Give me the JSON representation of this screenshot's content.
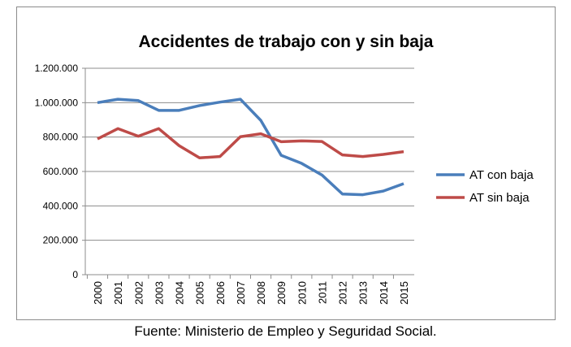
{
  "chart_data": {
    "type": "line",
    "title": "Accidentes de trabajo con y sin baja",
    "xlabel": "",
    "ylabel": "",
    "categories": [
      "2000",
      "2001",
      "2002",
      "2003",
      "2004",
      "2005",
      "2006",
      "2007",
      "2008",
      "2009",
      "2010",
      "2011",
      "2012",
      "2013",
      "2014",
      "2015"
    ],
    "ylim": [
      0,
      1200000
    ],
    "yticks": [
      "0",
      "200.000",
      "400.000",
      "600.000",
      "800.000",
      "1.000.000",
      "1.200.000"
    ],
    "grid": true,
    "legend_position": "right",
    "series": [
      {
        "name": "AT con baja",
        "color": "#4a7ebb",
        "values": [
          1000000,
          1020000,
          1012000,
          955000,
          955000,
          983000,
          1003000,
          1020000,
          897000,
          694000,
          647000,
          579000,
          469000,
          465000,
          486000,
          529000
        ]
      },
      {
        "name": "AT sin baja",
        "color": "#be4b48",
        "values": [
          789000,
          849000,
          805000,
          849000,
          750000,
          679000,
          687000,
          802000,
          819000,
          773000,
          778000,
          774000,
          696000,
          687000,
          699000,
          715000
        ]
      }
    ]
  },
  "caption": "Fuente: Ministerio de Empleo y Seguridad Social."
}
